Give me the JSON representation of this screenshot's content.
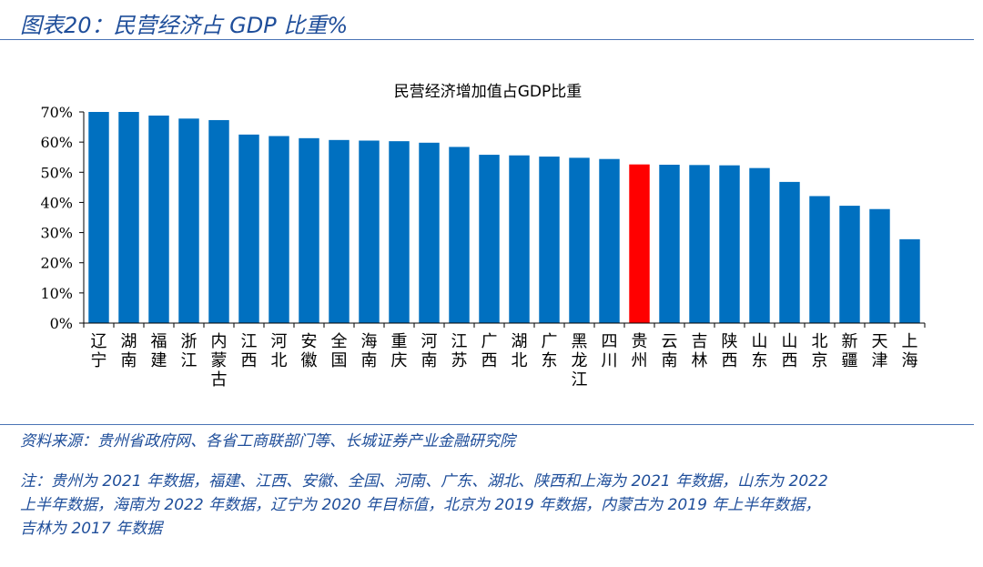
{
  "header": {
    "title": "图表20：民营经济占 GDP 比重%"
  },
  "chart_data": {
    "type": "bar",
    "title": "民营经济增加值占GDP比重",
    "categories": [
      "辽宁",
      "湖南",
      "福建",
      "浙江",
      "内蒙古",
      "江西",
      "河北",
      "安徽",
      "全国",
      "海南",
      "重庆",
      "河南",
      "江苏",
      "广西",
      "湖北",
      "广东",
      "黑龙江",
      "四川",
      "贵州",
      "云南",
      "吉林",
      "陕西",
      "山东",
      "山西",
      "北京",
      "新疆",
      "天津",
      "上海"
    ],
    "values": [
      70,
      70,
      68.8,
      67.8,
      67.3,
      62.5,
      62.0,
      61.3,
      60.7,
      60.5,
      60.3,
      59.8,
      58.4,
      55.8,
      55.6,
      55.2,
      54.8,
      54.4,
      52.6,
      52.5,
      52.4,
      52.3,
      51.4,
      46.8,
      42.1,
      38.9,
      37.8,
      27.8
    ],
    "highlight_category": "贵州",
    "colors": {
      "bar": "#0070c0",
      "highlight": "#ff0000"
    },
    "ylim": [
      0,
      70
    ],
    "ytick_labels": [
      "0%",
      "10%",
      "20%",
      "30%",
      "40%",
      "50%",
      "60%",
      "70%"
    ],
    "grid": false,
    "legend": "none"
  },
  "footer": {
    "source": "资料来源：贵州省政府网、各省工商联部门等、长城证券产业金融研究院",
    "note_lines": [
      "注：贵州为 2021 年数据，福建、江西、安徽、全国、河南、广东、湖北、陕西和上海为 2021 年数据，山东为 2022",
      "上半年数据，海南为 2022 年数据，辽宁为 2020 年目标值，北京为 2019 年数据，内蒙古为 2019 年上半年数据，",
      "吉林为 2017 年数据"
    ]
  }
}
